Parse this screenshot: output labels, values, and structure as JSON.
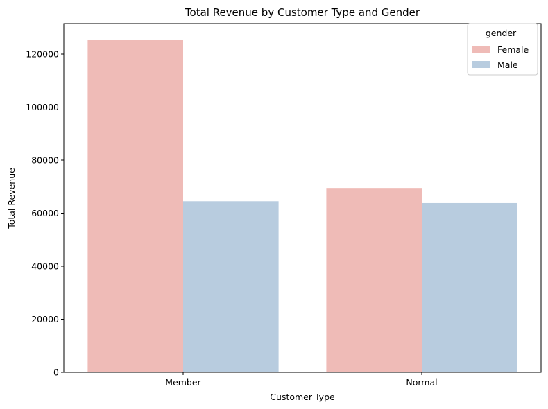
{
  "chart_data": {
    "type": "bar",
    "title": "Total Revenue by Customer Type and Gender",
    "xlabel": "Customer Type",
    "ylabel": "Total Revenue",
    "categories": [
      "Member",
      "Normal"
    ],
    "series": [
      {
        "name": "Female",
        "color": "#efbbb7",
        "values": [
          125300,
          69500
        ]
      },
      {
        "name": "Male",
        "color": "#b8ccdf",
        "values": [
          64500,
          63800
        ]
      }
    ],
    "ylim": [
      0,
      131500
    ],
    "yticks": [
      0,
      20000,
      40000,
      60000,
      80000,
      100000,
      120000
    ],
    "legend": {
      "title": "gender",
      "placement": "top-right"
    },
    "grid": false
  }
}
